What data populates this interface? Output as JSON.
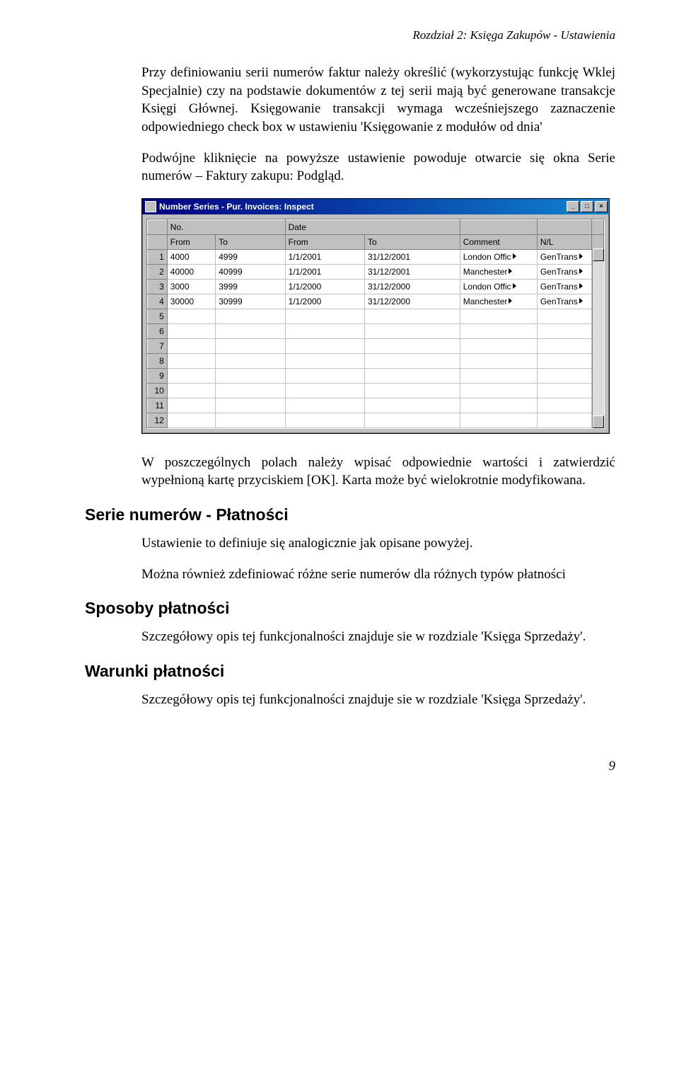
{
  "chapter_header": "Rozdział 2: Księga Zakupów - Ustawienia",
  "para1": "Przy definiowaniu serii numerów faktur należy określić (wykorzystując funkcję Wklej Specjalnie) czy na podstawie dokumentów z tej serii mają być generowane transakcje Księgi Głównej. Księgowanie transakcji wymaga wcześniejszego zaznaczenie odpowiedniego check box w ustawieniu 'Księgowanie z modułów od dnia'",
  "para2": "Podwójne kliknięcie na powyższe ustawienie powoduje otwarcie się okna Serie numerów – Faktury zakupu: Podgląd.",
  "para3": "W poszczególnych polach należy wpisać odpowiednie wartości i zatwierdzić wypełnioną kartę przyciskiem [OK]. Karta może być wielokrotnie modyfikowana.",
  "heading1": "Serie numerów - Płatności",
  "para4": "Ustawienie to definiuje się analogicznie jak opisane powyżej.",
  "para5": "Można również zdefiniować różne serie numerów dla różnych typów płatności",
  "heading2": "Sposoby płatności",
  "para6": "Szczegółowy opis tej funkcjonalności znajduje sie w rozdziale 'Księga Sprzedaży'.",
  "heading3": "Warunki płatności",
  "para7": "Szczegółowy opis tej funkcjonalności znajduje sie w rozdziale 'Księga Sprzedaży'.",
  "page_number": "9",
  "window": {
    "title": "Number Series - Pur. Invoices: Inspect",
    "group_headers": {
      "no": "No.",
      "date": "Date"
    },
    "columns": {
      "from": "From",
      "to": "To",
      "dfrom": "From",
      "dto": "To",
      "comment": "Comment",
      "nl": "N/L"
    },
    "rows": [
      {
        "n": "1",
        "from": "4000",
        "to": "4999",
        "dfrom": "1/1/2001",
        "dto": "31/12/2001",
        "comment": "London Offic",
        "nl": "GenTrans"
      },
      {
        "n": "2",
        "from": "40000",
        "to": "40999",
        "dfrom": "1/1/2001",
        "dto": "31/12/2001",
        "comment": "Manchester",
        "nl": "GenTrans"
      },
      {
        "n": "3",
        "from": "3000",
        "to": "3999",
        "dfrom": "1/1/2000",
        "dto": "31/12/2000",
        "comment": "London Offic",
        "nl": "GenTrans"
      },
      {
        "n": "4",
        "from": "30000",
        "to": "30999",
        "dfrom": "1/1/2000",
        "dto": "31/12/2000",
        "comment": "Manchester",
        "nl": "GenTrans"
      },
      {
        "n": "5",
        "from": "",
        "to": "",
        "dfrom": "",
        "dto": "",
        "comment": "",
        "nl": ""
      },
      {
        "n": "6",
        "from": "",
        "to": "",
        "dfrom": "",
        "dto": "",
        "comment": "",
        "nl": ""
      },
      {
        "n": "7",
        "from": "",
        "to": "",
        "dfrom": "",
        "dto": "",
        "comment": "",
        "nl": ""
      },
      {
        "n": "8",
        "from": "",
        "to": "",
        "dfrom": "",
        "dto": "",
        "comment": "",
        "nl": ""
      },
      {
        "n": "9",
        "from": "",
        "to": "",
        "dfrom": "",
        "dto": "",
        "comment": "",
        "nl": ""
      },
      {
        "n": "10",
        "from": "",
        "to": "",
        "dfrom": "",
        "dto": "",
        "comment": "",
        "nl": ""
      },
      {
        "n": "11",
        "from": "",
        "to": "",
        "dfrom": "",
        "dto": "",
        "comment": "",
        "nl": ""
      },
      {
        "n": "12",
        "from": "",
        "to": "",
        "dfrom": "",
        "dto": "",
        "comment": "",
        "nl": ""
      }
    ],
    "buttons": {
      "min": "_",
      "max": "□",
      "close": "×"
    }
  }
}
